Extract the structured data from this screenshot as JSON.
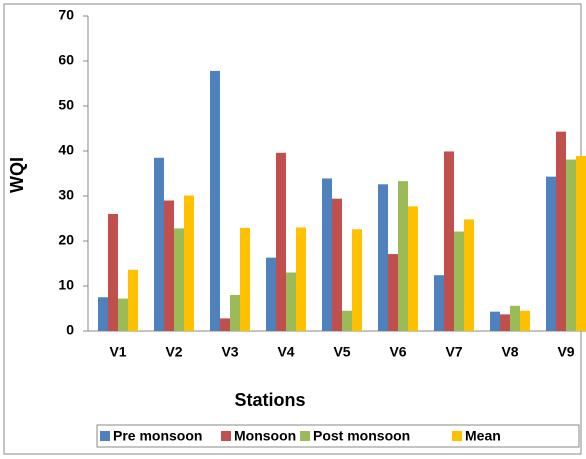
{
  "chart_data": {
    "type": "bar",
    "categories": [
      "V1",
      "V2",
      "V3",
      "V4",
      "V5",
      "V6",
      "V7",
      "V8",
      "V9"
    ],
    "series": [
      {
        "name": "Pre monsoon",
        "color": "#4f81bd",
        "values": [
          7.5,
          38.5,
          57.8,
          16.3,
          33.9,
          32.6,
          12.4,
          4.3,
          34.3
        ]
      },
      {
        "name": "Monsoon",
        "color": "#c0504d",
        "values": [
          26,
          29,
          2.8,
          39.6,
          29.4,
          17.1,
          39.9,
          3.7,
          44.3
        ]
      },
      {
        "name": "Post monsoon",
        "color": "#9bbb59",
        "values": [
          7.2,
          22.8,
          8.0,
          13.0,
          4.5,
          33.3,
          22.1,
          5.6,
          38.1
        ]
      },
      {
        "name": "Mean",
        "color": "#ffc000",
        "values": [
          13.6,
          30.1,
          22.9,
          23.0,
          22.6,
          27.7,
          24.8,
          4.5,
          38.9
        ]
      }
    ],
    "xlabel": "Stations",
    "ylabel": "WQI",
    "ylim": [
      0,
      70
    ],
    "yticks": [
      0,
      10,
      20,
      30,
      40,
      50,
      60,
      70
    ],
    "grid": false,
    "legend": "bottom"
  }
}
